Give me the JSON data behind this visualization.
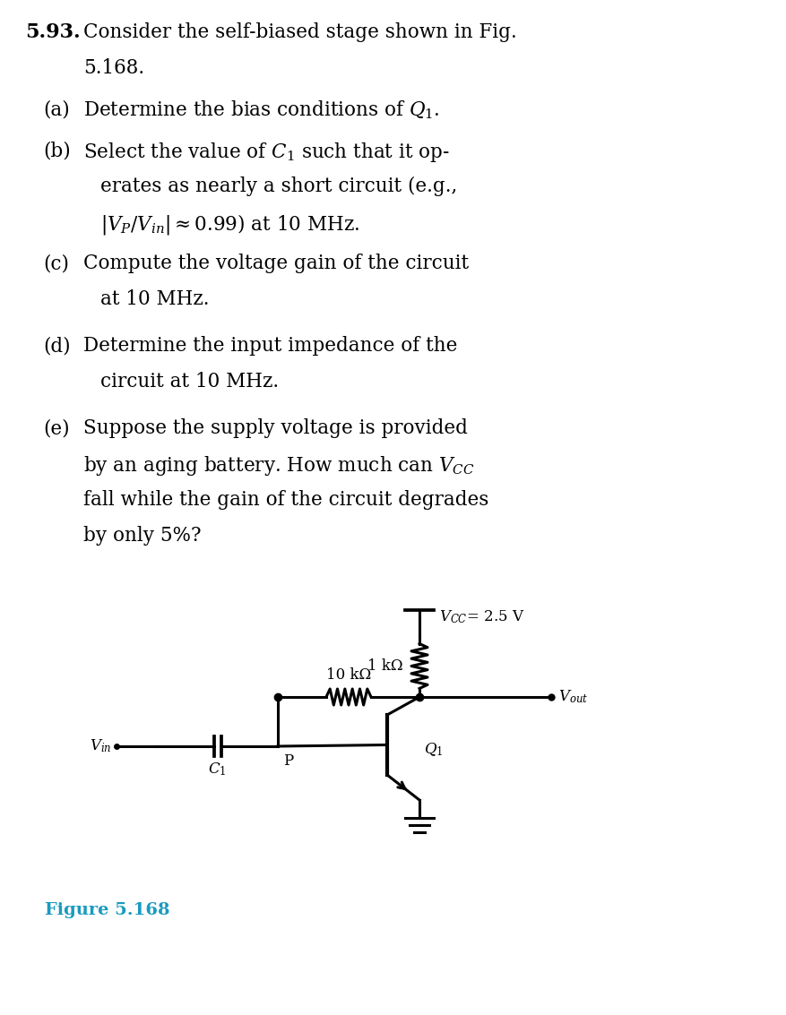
{
  "background_color": "#ffffff",
  "fig_width": 8.77,
  "fig_height": 11.33,
  "figure_label": "Figure 5.168",
  "figure_label_color": "#1a9abf",
  "figure_label_fontsize": 14,
  "circuit": {
    "vcc_label": "$V_{CC}$= 2.5 V",
    "r1_label": "10 kΩ",
    "r2_label": "1 kΩ",
    "vout_label": "$V_{out}$",
    "vin_label": "$V_{in}$",
    "c1_label": "$C_1$",
    "p_label": "P",
    "q1_label": "$Q_1$"
  }
}
